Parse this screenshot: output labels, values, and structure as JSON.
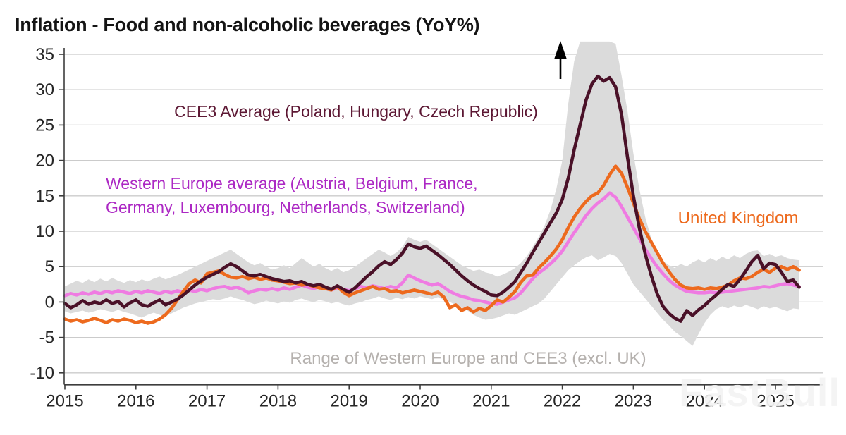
{
  "title": "Inflation - Food and non-alcoholic beverages (YoY%)",
  "watermark": "FastBull",
  "labels": {
    "cee3": {
      "text": "CEE3 Average (Poland, Hungary, Czech Republic)",
      "color": "#5c1733"
    },
    "western_europe": {
      "line1": "Western Europe average (Austria, Belgium, France,",
      "line2": "Germany, Luxembourg, Netherlands, Switzerland)",
      "color": "#ac28c4"
    },
    "uk": {
      "text": "United Kingdom",
      "color": "#ed6a1e"
    },
    "range": {
      "text": "Range of Western Europe and CEE3 (excl. UK)",
      "color": "#b5b1ae"
    }
  },
  "chart_data": {
    "type": "line",
    "title": "Inflation - Food and non-alcoholic beverages (YoY%)",
    "x_unit": "month",
    "x_start": "2015-01",
    "x_end": "2025-05",
    "x_tick_labels": [
      "2015",
      "2016",
      "2017",
      "2018",
      "2019",
      "2020",
      "2021",
      "2022",
      "2023",
      "2024",
      "2025"
    ],
    "y_ticks": [
      35,
      30,
      25,
      20,
      15,
      10,
      5,
      0,
      -5,
      -10
    ],
    "ylim": [
      -10,
      37
    ],
    "grid": "horizontal",
    "legend_position": "inline-annotations",
    "colors": {
      "grid": "#cbcbcb",
      "axis": "#3d3d3d",
      "tick_text": "#262626",
      "arrow": "#000000",
      "background": "#ffffff"
    },
    "band": {
      "name": "Range of Western Europe and CEE3 (excl. UK)",
      "color": "#dbdbdb",
      "low": [
        -1.3,
        -1.6,
        -1.4,
        -1.2,
        -1.5,
        -1.3,
        -1.0,
        -1.2,
        -1.4,
        -1.1,
        -1.4,
        -1.6,
        -1.9,
        -2.2,
        -1.8,
        -1.5,
        -1.8,
        -2.0,
        -1.6,
        -1.2,
        -0.8,
        -0.5,
        -0.2,
        0.0,
        0.2,
        0.4,
        0.3,
        0.5,
        0.8,
        0.5,
        0.3,
        0.0,
        -0.3,
        -0.1,
        0.2,
        0.0,
        -0.2,
        0.1,
        -0.1,
        0.3,
        0.5,
        0.2,
        0.0,
        0.3,
        0.1,
        -0.2,
        0.0,
        -0.3,
        -0.5,
        -0.2,
        0.0,
        0.3,
        0.5,
        0.8,
        0.5,
        0.3,
        0.6,
        0.4,
        0.7,
        0.5,
        0.8,
        0.6,
        0.4,
        0.7,
        0.3,
        0.0,
        -0.4,
        -0.8,
        -1.2,
        -1.8,
        -2.2,
        -2.5,
        -2.4,
        -2.2,
        -1.9,
        -1.6,
        -1.8,
        -1.4,
        -1.0,
        -0.6,
        -0.2,
        0.5,
        1.5,
        2.5,
        3.5,
        4.5,
        5.2,
        5.8,
        6.3,
        6.6,
        5.9,
        6.3,
        6.8,
        6.5,
        5.5,
        4.0,
        2.5,
        1.5,
        0.5,
        -0.5,
        -1.5,
        -2.5,
        -3.3,
        -4.2,
        -4.8,
        -5.5,
        -6.2,
        -4.5,
        -3.0,
        -1.8,
        -1.0,
        -0.6,
        -0.9,
        -0.5,
        -0.8,
        -0.4,
        -0.7,
        -1.0,
        -0.6,
        -0.9,
        -0.7,
        -1.0,
        -1.3,
        -0.9,
        -1.0
      ],
      "high": [
        2.2,
        2.6,
        3.0,
        2.7,
        3.2,
        2.8,
        3.3,
        2.9,
        3.4,
        3.0,
        2.7,
        3.1,
        2.8,
        3.2,
        2.9,
        3.3,
        3.6,
        3.2,
        3.5,
        3.8,
        4.2,
        4.6,
        5.0,
        5.4,
        5.8,
        6.2,
        6.6,
        7.0,
        7.4,
        6.8,
        6.2,
        5.6,
        5.2,
        5.5,
        5.0,
        4.6,
        4.8,
        5.2,
        4.8,
        5.5,
        6.2,
        5.6,
        5.0,
        5.4,
        4.8,
        4.4,
        4.8,
        4.2,
        4.5,
        5.0,
        5.6,
        6.2,
        6.8,
        7.4,
        7.0,
        6.5,
        7.0,
        7.8,
        9.2,
        8.8,
        8.5,
        8.8,
        8.2,
        7.6,
        7.0,
        6.4,
        5.8,
        5.2,
        4.8,
        4.4,
        4.6,
        4.2,
        4.0,
        3.6,
        3.9,
        4.3,
        4.8,
        5.5,
        6.5,
        7.8,
        9.2,
        10.8,
        13.0,
        16.0,
        20.0,
        28.0,
        34.0,
        36.8,
        36.8,
        36.8,
        36.8,
        36.8,
        36.8,
        36.5,
        32.0,
        27.0,
        21.0,
        16.0,
        12.0,
        9.0,
        7.0,
        5.8,
        5.2,
        4.8,
        5.4,
        5.0,
        5.6,
        6.0,
        5.6,
        6.2,
        5.8,
        6.4,
        6.0,
        6.6,
        6.2,
        6.8,
        7.2,
        7.3,
        6.5,
        6.8,
        6.4,
        6.6,
        6.2,
        6.0,
        5.9
      ]
    },
    "series": [
      {
        "id": "cee3",
        "z": 3,
        "name": "CEE3 Average (Poland, Hungary, Czech Republic)",
        "color": "#4a1128",
        "values": [
          -0.2,
          -0.8,
          -0.4,
          0.2,
          -0.3,
          0.0,
          -0.2,
          0.3,
          -0.2,
          0.1,
          -0.7,
          -0.1,
          0.3,
          -0.4,
          -0.6,
          -0.1,
          0.3,
          -0.4,
          0.0,
          0.4,
          1.0,
          1.7,
          2.4,
          3.0,
          3.5,
          3.9,
          4.3,
          4.9,
          5.4,
          5.0,
          4.4,
          3.8,
          3.7,
          3.9,
          3.6,
          3.3,
          3.1,
          2.9,
          3.0,
          2.7,
          2.9,
          2.5,
          2.3,
          2.5,
          2.1,
          1.8,
          2.3,
          1.8,
          1.4,
          2.0,
          2.8,
          3.6,
          4.3,
          5.1,
          5.7,
          5.3,
          6.0,
          6.9,
          8.2,
          7.8,
          7.6,
          7.9,
          7.3,
          6.7,
          6.0,
          5.3,
          4.5,
          3.7,
          3.0,
          2.4,
          1.9,
          1.5,
          1.0,
          0.9,
          1.4,
          2.1,
          2.9,
          4.2,
          5.5,
          7.0,
          8.4,
          9.8,
          11.2,
          12.6,
          14.5,
          17.5,
          21.5,
          25.0,
          28.5,
          30.8,
          31.9,
          31.2,
          31.7,
          30.4,
          26.5,
          20.5,
          15.0,
          10.5,
          6.8,
          3.8,
          1.2,
          -0.6,
          -1.6,
          -2.3,
          -2.7,
          -1.2,
          -1.9,
          -1.1,
          -0.5,
          0.3,
          1.0,
          1.8,
          2.5,
          2.2,
          3.2,
          4.4,
          5.7,
          6.6,
          4.7,
          5.5,
          5.3,
          4.2,
          2.9,
          3.1,
          2.1
        ]
      },
      {
        "id": "western_europe",
        "z": 1,
        "name": "Western Europe average (Austria, Belgium, France, Germany, Luxembourg, Netherlands, Switzerland)",
        "color": "#ef7be2",
        "values": [
          0.9,
          1.2,
          1.0,
          1.3,
          1.1,
          1.4,
          1.2,
          1.5,
          1.3,
          1.6,
          1.4,
          1.2,
          1.5,
          1.3,
          1.6,
          1.4,
          1.2,
          1.5,
          1.3,
          1.6,
          1.4,
          1.7,
          1.5,
          1.8,
          1.6,
          1.9,
          2.1,
          2.2,
          1.9,
          2.1,
          1.8,
          1.3,
          1.6,
          1.8,
          1.7,
          1.9,
          1.7,
          2.0,
          1.8,
          2.1,
          2.4,
          2.1,
          1.9,
          2.2,
          1.9,
          1.7,
          2.0,
          1.8,
          1.6,
          1.9,
          2.2,
          2.0,
          2.3,
          2.1,
          1.9,
          2.2,
          2.0,
          2.7,
          3.8,
          3.4,
          3.0,
          2.7,
          2.4,
          2.6,
          2.1,
          1.5,
          1.1,
          0.8,
          0.6,
          0.3,
          0.2,
          0.0,
          -0.2,
          -0.3,
          0.0,
          0.3,
          0.6,
          1.3,
          2.3,
          3.3,
          4.1,
          4.7,
          5.4,
          6.2,
          7.2,
          8.5,
          9.8,
          11.0,
          12.2,
          13.2,
          14.0,
          14.6,
          15.4,
          14.8,
          13.5,
          12.0,
          10.5,
          9.0,
          7.5,
          6.2,
          5.0,
          4.0,
          3.1,
          2.4,
          1.9,
          1.5,
          1.4,
          1.3,
          1.3,
          1.4,
          1.3,
          1.4,
          1.5,
          1.6,
          1.7,
          1.8,
          1.9,
          2.0,
          2.2,
          2.1,
          2.3,
          2.5,
          2.6,
          2.4,
          2.2
        ]
      },
      {
        "id": "uk",
        "z": 2,
        "name": "United Kingdom",
        "color": "#ed6a1e",
        "values": [
          -2.4,
          -2.7,
          -2.5,
          -2.8,
          -2.6,
          -2.3,
          -2.6,
          -2.9,
          -2.5,
          -2.7,
          -2.4,
          -2.6,
          -2.9,
          -2.7,
          -3.0,
          -2.8,
          -2.4,
          -1.8,
          -0.9,
          0.3,
          1.5,
          2.6,
          3.1,
          2.7,
          4.0,
          4.2,
          4.4,
          3.9,
          3.5,
          3.4,
          3.6,
          3.3,
          3.5,
          3.2,
          3.4,
          3.1,
          3.0,
          2.8,
          2.6,
          2.7,
          2.4,
          2.5,
          2.2,
          2.0,
          1.9,
          1.7,
          2.2,
          1.4,
          0.9,
          1.3,
          1.6,
          1.9,
          2.2,
          1.8,
          1.9,
          1.5,
          1.6,
          1.3,
          1.5,
          1.7,
          1.5,
          1.3,
          1.1,
          1.4,
          0.7,
          -0.8,
          -0.4,
          -1.2,
          -0.8,
          -1.4,
          -0.9,
          -1.2,
          -0.5,
          0.3,
          0.0,
          0.7,
          1.5,
          2.8,
          3.7,
          3.8,
          4.8,
          5.6,
          6.5,
          7.5,
          8.8,
          10.5,
          12.0,
          13.2,
          14.2,
          15.0,
          15.4,
          16.5,
          18.0,
          19.2,
          18.2,
          16.2,
          14.0,
          11.8,
          10.0,
          8.5,
          7.0,
          5.5,
          4.3,
          3.2,
          2.4,
          2.0,
          1.9,
          2.0,
          1.8,
          2.0,
          1.9,
          2.1,
          2.4,
          3.0,
          3.4,
          3.3,
          3.6,
          4.2,
          4.6,
          4.2,
          4.8,
          5.0,
          4.6,
          5.0,
          4.5
        ]
      }
    ],
    "annotations": [
      {
        "id": "arrow-up",
        "meaning": "range extends above chart maximum",
        "x_label": "2022"
      }
    ]
  }
}
